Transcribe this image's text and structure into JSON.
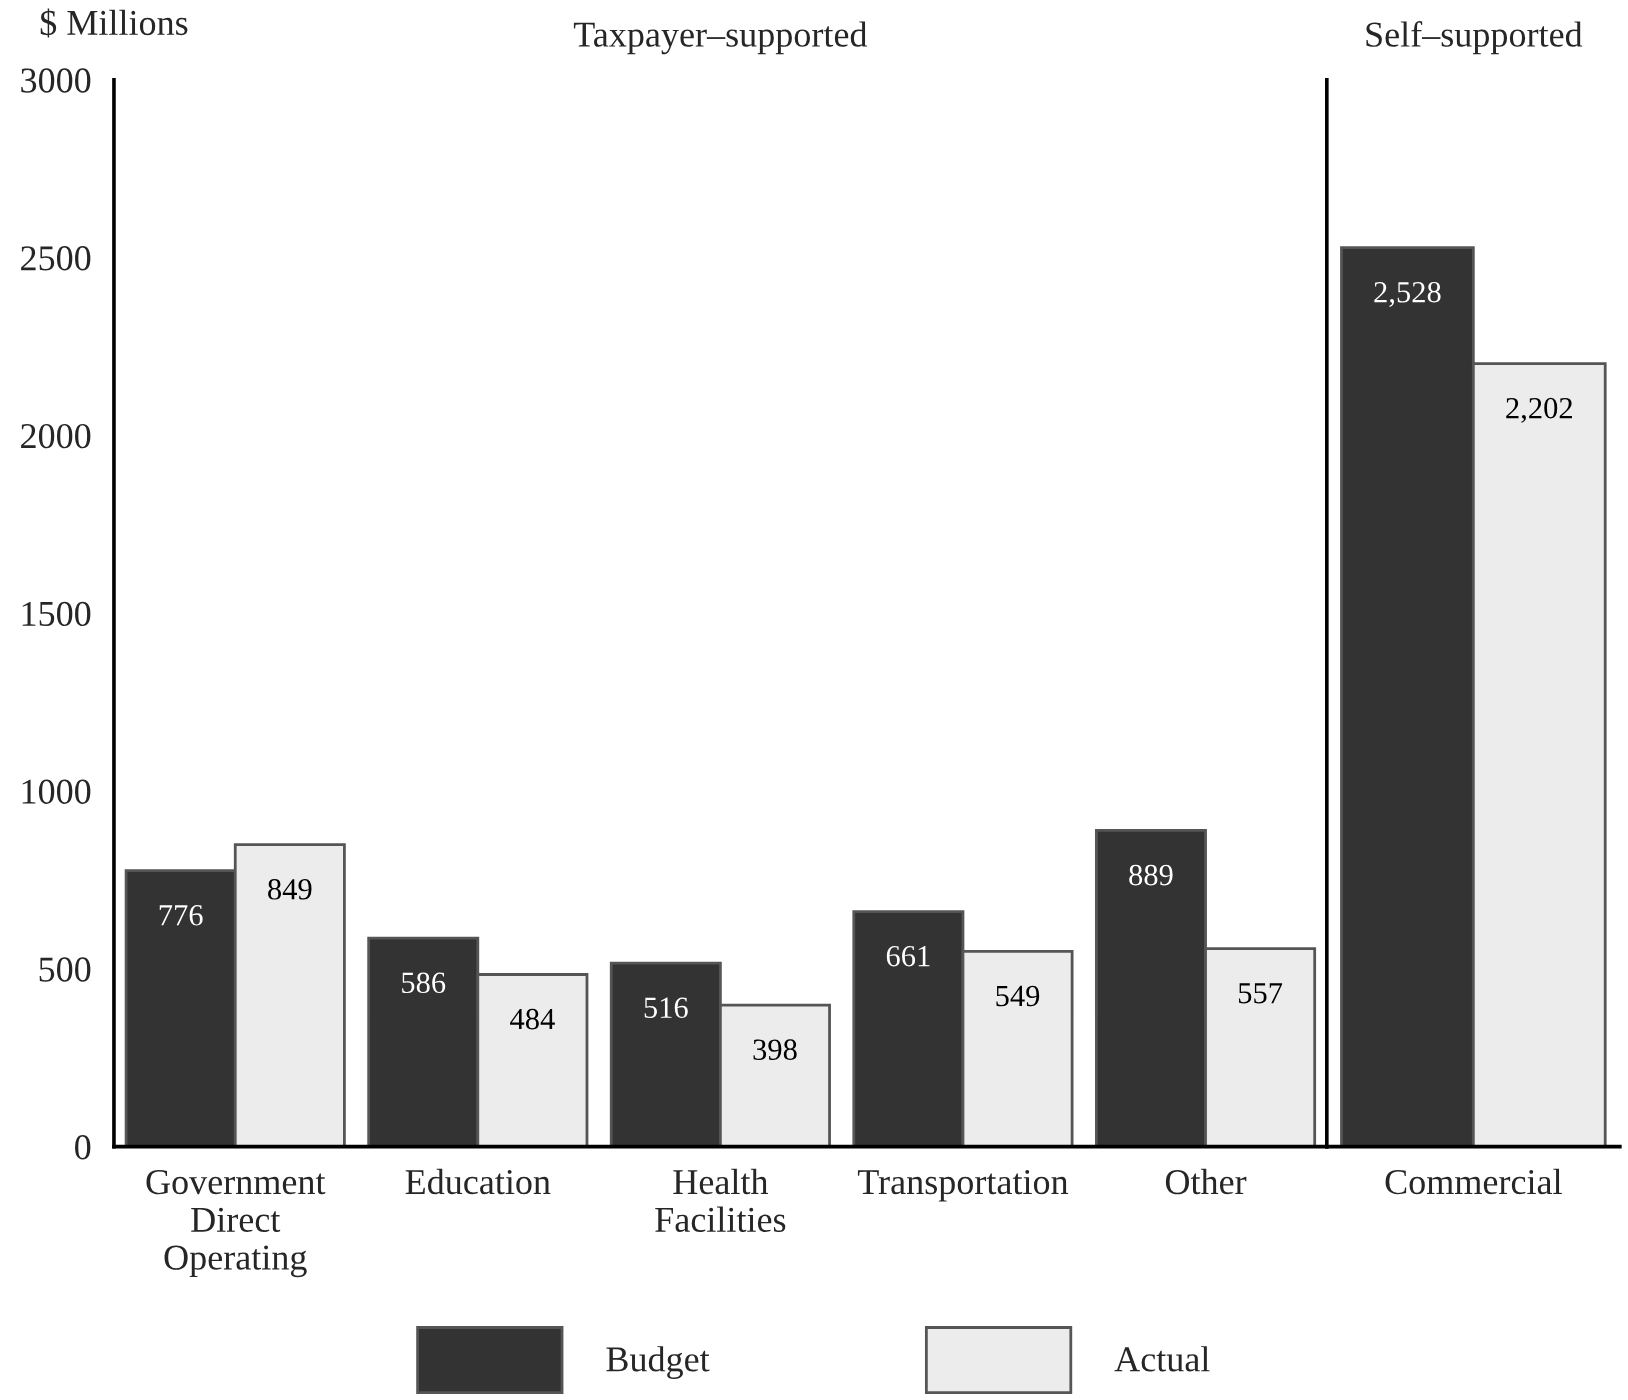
{
  "chart_data": [
    {
      "type": "bar",
      "title": "Taxpayer–supported",
      "ylabel": "$ Millions",
      "categories": [
        "Government\nDirect\nOperating",
        "Education",
        "Health\nFacilities",
        "Transportation",
        "Other"
      ],
      "ylim": [
        0,
        3000
      ],
      "yticks": [
        0,
        500,
        1000,
        1500,
        2000,
        2500,
        3000
      ],
      "grid": false,
      "legend": "bottom",
      "series": [
        {
          "name": "Budget",
          "color": "#333333",
          "values": [
            776,
            586,
            516,
            661,
            889
          ],
          "value_labels": [
            "776",
            "586",
            "516",
            "661",
            "889"
          ]
        },
        {
          "name": "Actual",
          "color": "#ececec",
          "values": [
            849,
            484,
            398,
            549,
            557
          ],
          "value_labels": [
            "849",
            "484",
            "398",
            "549",
            "557"
          ]
        }
      ]
    },
    {
      "type": "bar",
      "title": "Self–supported",
      "categories": [
        "Commercial"
      ],
      "ylim": [
        0,
        3000
      ],
      "tick_labels": "x",
      "grid": false,
      "series": [
        {
          "color": "#333333",
          "values": [
            2528
          ],
          "value_labels": [
            "2,528"
          ]
        },
        {
          "color": "#ececec",
          "values": [
            2202
          ],
          "value_labels": [
            "2,202"
          ]
        }
      ]
    }
  ]
}
